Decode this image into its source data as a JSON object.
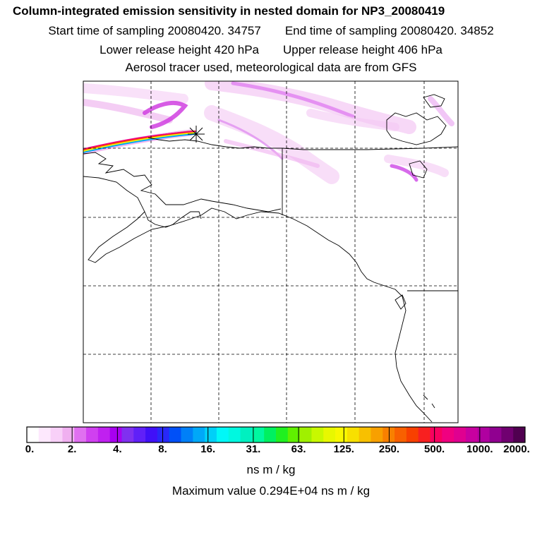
{
  "header": {
    "title": "Column-integrated emission sensitivity in nested domain for NP3_20080419",
    "start_label": "Start time of sampling 20080420. 34757",
    "end_label": "End time of sampling 20080420. 34852",
    "lower_label": "Lower release height  420 hPa",
    "upper_label": "Upper release height  406 hPa",
    "tracer_label": "Aerosol tracer used, meteorological data are from GFS"
  },
  "legend": {
    "tick_labels": [
      "0.",
      "2.",
      "4.",
      "8.",
      "16.",
      "31.",
      "63.",
      "125.",
      "250.",
      "500.",
      "1000.",
      "2000."
    ],
    "colors": [
      "#ffffff",
      "#fde8fd",
      "#f8d0f8",
      "#f0b0f0",
      "#e070f0",
      "#d040f0",
      "#c020f0",
      "#a800f0",
      "#8030f0",
      "#6020f8",
      "#4010f8",
      "#2828f8",
      "#0050f8",
      "#0080f8",
      "#00a8f8",
      "#00d0f8",
      "#00f8f8",
      "#00f8e0",
      "#00f0c0",
      "#00f8a0",
      "#00f060",
      "#20f020",
      "#60f000",
      "#a0f000",
      "#c8f800",
      "#e8f800",
      "#f8f800",
      "#f8e000",
      "#f8c000",
      "#f8a000",
      "#f88000",
      "#f86000",
      "#f84000",
      "#f82020",
      "#f80060",
      "#f00080",
      "#e00090",
      "#c800a0",
      "#b000a0",
      "#900090",
      "#700070",
      "#500050"
    ],
    "units": "ns m / kg",
    "max_label": "Maximum value  0.294E+04 ns m / kg"
  }
}
